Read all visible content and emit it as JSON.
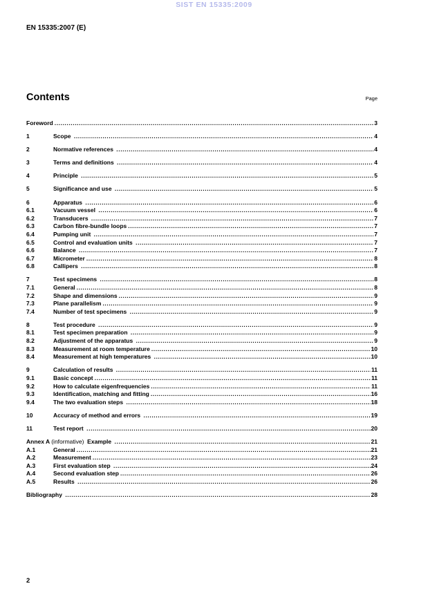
{
  "watermark": "SIST EN 15335:2009",
  "doc_ref": "EN 15335:2007 (E)",
  "contents": {
    "title": "Contents",
    "page_label": "Page"
  },
  "toc": [
    {
      "num": "",
      "title": "Foreword",
      "page": "3",
      "group": true
    },
    {
      "num": "1",
      "title": "Scope ",
      "page": "4",
      "group": true
    },
    {
      "num": "2",
      "title": "Normative references ",
      "page": "4",
      "group": true
    },
    {
      "num": "3",
      "title": "Terms and definitions ",
      "page": "4",
      "group": true
    },
    {
      "num": "4",
      "title": "Principle ",
      "page": "5",
      "group": true
    },
    {
      "num": "5",
      "title": "Significance and use ",
      "page": "5",
      "group": true
    },
    {
      "num": "6",
      "title": "Apparatus ",
      "page": "6",
      "group": true
    },
    {
      "num": "6.1",
      "title": "Vacuum vessel ",
      "page": "6"
    },
    {
      "num": "6.2",
      "title": "Transducers ",
      "page": "7"
    },
    {
      "num": "6.3",
      "title": "Carbon fibre-bundle loops",
      "page": "7"
    },
    {
      "num": "6.4",
      "title": "Pumping unit ",
      "page": "7"
    },
    {
      "num": "6.5",
      "title": "Control and evaluation units ",
      "page": "7"
    },
    {
      "num": "6.6",
      "title": "Balance ",
      "page": "7"
    },
    {
      "num": "6.7",
      "title": "Micrometer",
      "page": "8"
    },
    {
      "num": "6.8",
      "title": "Callipers ",
      "page": "8"
    },
    {
      "num": "7",
      "title": "Test specimens ",
      "page": "8",
      "group": true
    },
    {
      "num": "7.1",
      "title": "General",
      "page": "8"
    },
    {
      "num": "7.2",
      "title": "Shape and dimensions",
      "page": "9"
    },
    {
      "num": "7.3",
      "title": "Plane parallelism",
      "page": "9"
    },
    {
      "num": "7.4",
      "title": "Number of test specimens ",
      "page": "9"
    },
    {
      "num": "8",
      "title": "Test procedure ",
      "page": "9",
      "group": true
    },
    {
      "num": "8.1",
      "title": "Test specimen preparation ",
      "page": "9"
    },
    {
      "num": "8.2",
      "title": "Adjustment of the apparatus ",
      "page": "9"
    },
    {
      "num": "8.3",
      "title": "Measurement at room temperature",
      "page": "10"
    },
    {
      "num": "8.4",
      "title": "Measurement at high temperatures ",
      "page": "10"
    },
    {
      "num": "9",
      "title": "Calculation of results ",
      "page": "11",
      "group": true
    },
    {
      "num": "9.1",
      "title": "Basic concept",
      "page": "11"
    },
    {
      "num": "9.2",
      "title": "How to calculate eigenfrequencies",
      "page": "11"
    },
    {
      "num": "9.3",
      "title": "Identification, matching and fitting",
      "page": "16"
    },
    {
      "num": "9.4",
      "title": "The two evaluation steps ",
      "page": "18"
    },
    {
      "num": "10",
      "title": "Accuracy of method and errors ",
      "page": "19",
      "group": true
    },
    {
      "num": "11",
      "title": "Test report ",
      "page": "20",
      "group": true
    },
    {
      "parts": [
        {
          "t": "Annex A ",
          "b": 1
        },
        {
          "t": "(informative)",
          "b": 0
        },
        {
          "t": "  Example ",
          "b": 1
        }
      ],
      "page": "21",
      "group": true
    },
    {
      "num": "A.1",
      "title": "General",
      "page": "21"
    },
    {
      "num": "A.2",
      "title": "Measurement",
      "page": "23"
    },
    {
      "num": "A.3",
      "title": "First evaluation step ",
      "page": "24"
    },
    {
      "num": "A.4",
      "title": "Second evaluation step",
      "page": "26"
    },
    {
      "num": "A.5",
      "title": "Results ",
      "page": "26"
    },
    {
      "num": "",
      "title": "Bibliography ",
      "page": "28",
      "group": true
    }
  ],
  "footer": {
    "page_number": "2"
  }
}
